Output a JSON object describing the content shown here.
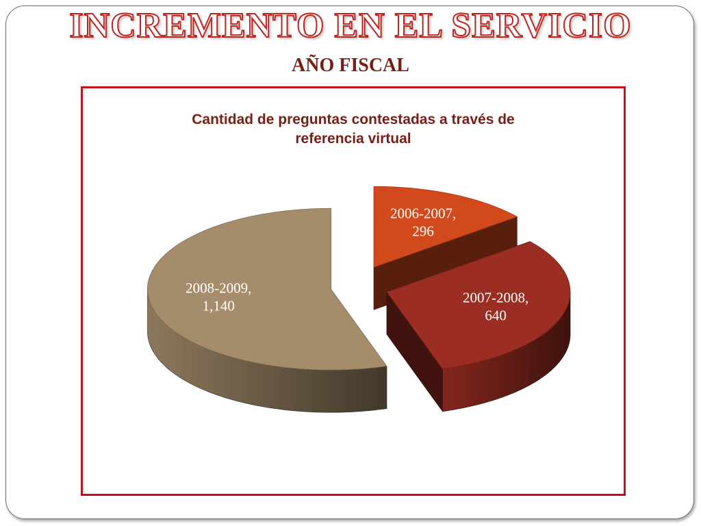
{
  "slide": {
    "title": "INCREMENTO EN EL SERVICIO",
    "subtitle": "AÑO FISCAL"
  },
  "chart_data": {
    "type": "pie",
    "variant": "3d-exploded",
    "title": "Cantidad de preguntas contestadas a través de referencia virtual",
    "title_lines": [
      "Cantidad de preguntas contestadas a través de",
      "referencia virtual"
    ],
    "categories": [
      "2006-2007",
      "2007-2008",
      "2008-2009"
    ],
    "values": [
      296,
      640,
      1140
    ],
    "value_labels": [
      "296",
      "640",
      "1,140"
    ],
    "colors": {
      "2006-2007": "#d2491c",
      "2007-2008": "#9b2d22",
      "2008-2009": "#a58d6c"
    },
    "legend": "none"
  }
}
